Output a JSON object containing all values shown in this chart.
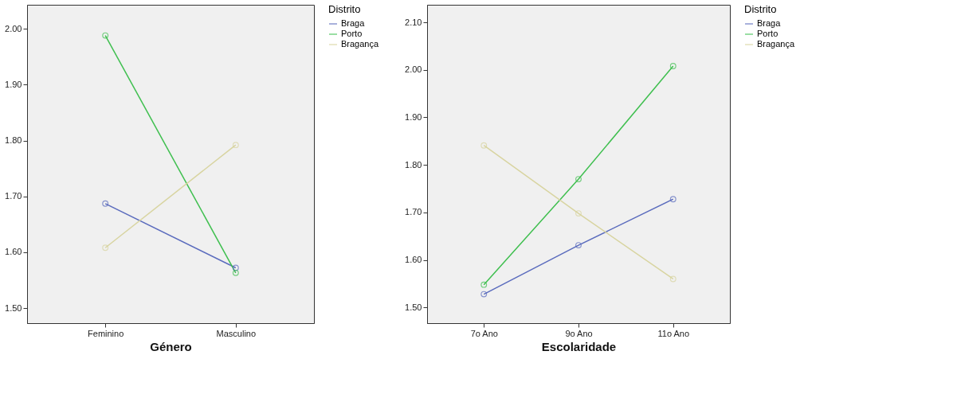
{
  "chart_data": [
    {
      "type": "line",
      "xlabel": "Género",
      "legend_title": "Distrito",
      "categories": [
        "Feminino",
        "Masculino"
      ],
      "ylim": [
        1.473,
        2.043
      ],
      "yticks": [
        {
          "value": 1.5,
          "label": "1.50"
        },
        {
          "value": 1.6,
          "label": "1.60"
        },
        {
          "value": 1.7,
          "label": "1.70"
        },
        {
          "value": 1.8,
          "label": "1.80"
        },
        {
          "value": 1.9,
          "label": "1.90"
        },
        {
          "value": 2.0,
          "label": "2.00"
        }
      ],
      "marker": "circle",
      "grid": false,
      "legend": "top right",
      "series": [
        {
          "name": "Braga",
          "color": "#5a6bbd",
          "values": [
            1.687,
            1.572
          ]
        },
        {
          "name": "Porto",
          "color": "#3fbf4f",
          "values": [
            1.988,
            1.563
          ]
        },
        {
          "name": "Bragança",
          "color": "#d8d4a0",
          "values": [
            1.608,
            1.792
          ]
        }
      ]
    },
    {
      "type": "line",
      "xlabel": "Escolaridade",
      "legend_title": "Distrito",
      "categories": [
        "7o Ano",
        "9o Ano",
        "11o Ano"
      ],
      "ylim": [
        1.467,
        2.137
      ],
      "yticks": [
        {
          "value": 1.5,
          "label": "1.50"
        },
        {
          "value": 1.6,
          "label": "1.60"
        },
        {
          "value": 1.7,
          "label": "1.70"
        },
        {
          "value": 1.8,
          "label": "1.80"
        },
        {
          "value": 1.9,
          "label": "1.90"
        },
        {
          "value": 2.0,
          "label": "2.00"
        },
        {
          "value": 2.1,
          "label": "2.10"
        }
      ],
      "marker": "circle",
      "grid": false,
      "legend": "top right",
      "series": [
        {
          "name": "Braga",
          "color": "#5a6bbd",
          "values": [
            1.528,
            1.631,
            1.728
          ]
        },
        {
          "name": "Porto",
          "color": "#3fbf4f",
          "values": [
            1.548,
            1.77,
            2.008
          ]
        },
        {
          "name": "Bragança",
          "color": "#d8d4a0",
          "values": [
            1.841,
            1.698,
            1.56
          ]
        }
      ]
    }
  ]
}
